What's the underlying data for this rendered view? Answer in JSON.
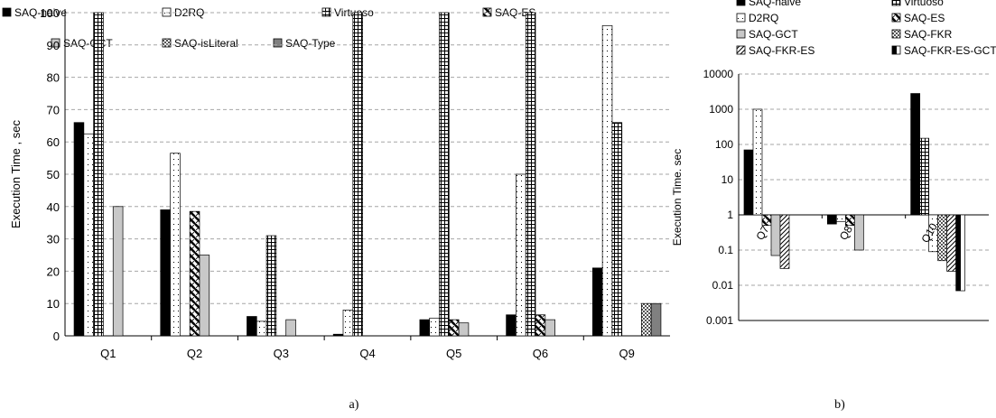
{
  "colors": {
    "grid": "#a6a6a6",
    "axis": "#000000",
    "fill_light": "#c8c8c8",
    "fill_dark": "#808080"
  },
  "chart_data": [
    {
      "type": "bar",
      "caption": "a)",
      "ylabel": "Execution Time , sec",
      "ylim": [
        0,
        100
      ],
      "yticks": [
        0,
        10,
        20,
        30,
        40,
        50,
        60,
        70,
        80,
        90,
        100
      ],
      "grid": true,
      "legend_position": "top",
      "categories": [
        "Q1",
        "Q2",
        "Q3",
        "Q4",
        "Q5",
        "Q6",
        "Q9"
      ],
      "series": [
        {
          "name": "SAQ-naive",
          "pattern": "black",
          "values": [
            66,
            39,
            6,
            0.5,
            5,
            6.5,
            21
          ]
        },
        {
          "name": "D2RQ",
          "pattern": "dots",
          "values": [
            62.5,
            56.5,
            4.5,
            8,
            5.5,
            50,
            96
          ]
        },
        {
          "name": "Virtuoso",
          "pattern": "grid",
          "values": [
            100,
            null,
            31,
            100,
            100,
            100,
            66
          ]
        },
        {
          "name": "SAQ-ES",
          "pattern": "zigzag",
          "values": [
            null,
            38.5,
            null,
            null,
            5,
            6.5,
            null
          ]
        },
        {
          "name": "SAQ-GCT",
          "pattern": "lightgray",
          "values": [
            40,
            25,
            5,
            null,
            4,
            5,
            null
          ]
        },
        {
          "name": "SAQ-isLiteral",
          "pattern": "checker",
          "values": [
            null,
            null,
            null,
            null,
            null,
            null,
            10
          ]
        },
        {
          "name": "SAQ-Type",
          "pattern": "darkgray",
          "values": [
            null,
            null,
            null,
            null,
            null,
            null,
            10
          ]
        }
      ]
    },
    {
      "type": "bar",
      "caption": "b)",
      "ylabel": "Execution Time. sec",
      "yscale": "log",
      "ylim": [
        0.001,
        10000
      ],
      "yticks": [
        "0.001",
        "0.01",
        "0.1",
        "1",
        "10",
        "100",
        "1000",
        "10000"
      ],
      "grid": true,
      "legend_position": "top",
      "categories": [
        "Q7",
        "Q8",
        "Q10"
      ],
      "series": [
        {
          "name": "SAQ-naive",
          "pattern": "black",
          "values": [
            70,
            0.55,
            2800
          ]
        },
        {
          "name": "Virtuoso",
          "pattern": "grid",
          "values": [
            null,
            null,
            150
          ]
        },
        {
          "name": "D2RQ",
          "pattern": "dots",
          "values": [
            1000,
            0.65,
            0.09
          ]
        },
        {
          "name": "SAQ-ES",
          "pattern": "zigzag",
          "values": [
            0.5,
            0.5,
            null
          ]
        },
        {
          "name": "SAQ-GCT",
          "pattern": "lightgray",
          "values": [
            0.07,
            0.1,
            null
          ]
        },
        {
          "name": "SAQ-FKR",
          "pattern": "checker",
          "values": [
            null,
            null,
            0.05
          ]
        },
        {
          "name": "SAQ-FKR-ES",
          "pattern": "diagonal",
          "values": [
            0.03,
            null,
            0.025
          ]
        },
        {
          "name": "SAQ-FKR-ES-GCT",
          "pattern": "halfblack",
          "values": [
            null,
            null,
            0.007
          ]
        }
      ]
    }
  ]
}
